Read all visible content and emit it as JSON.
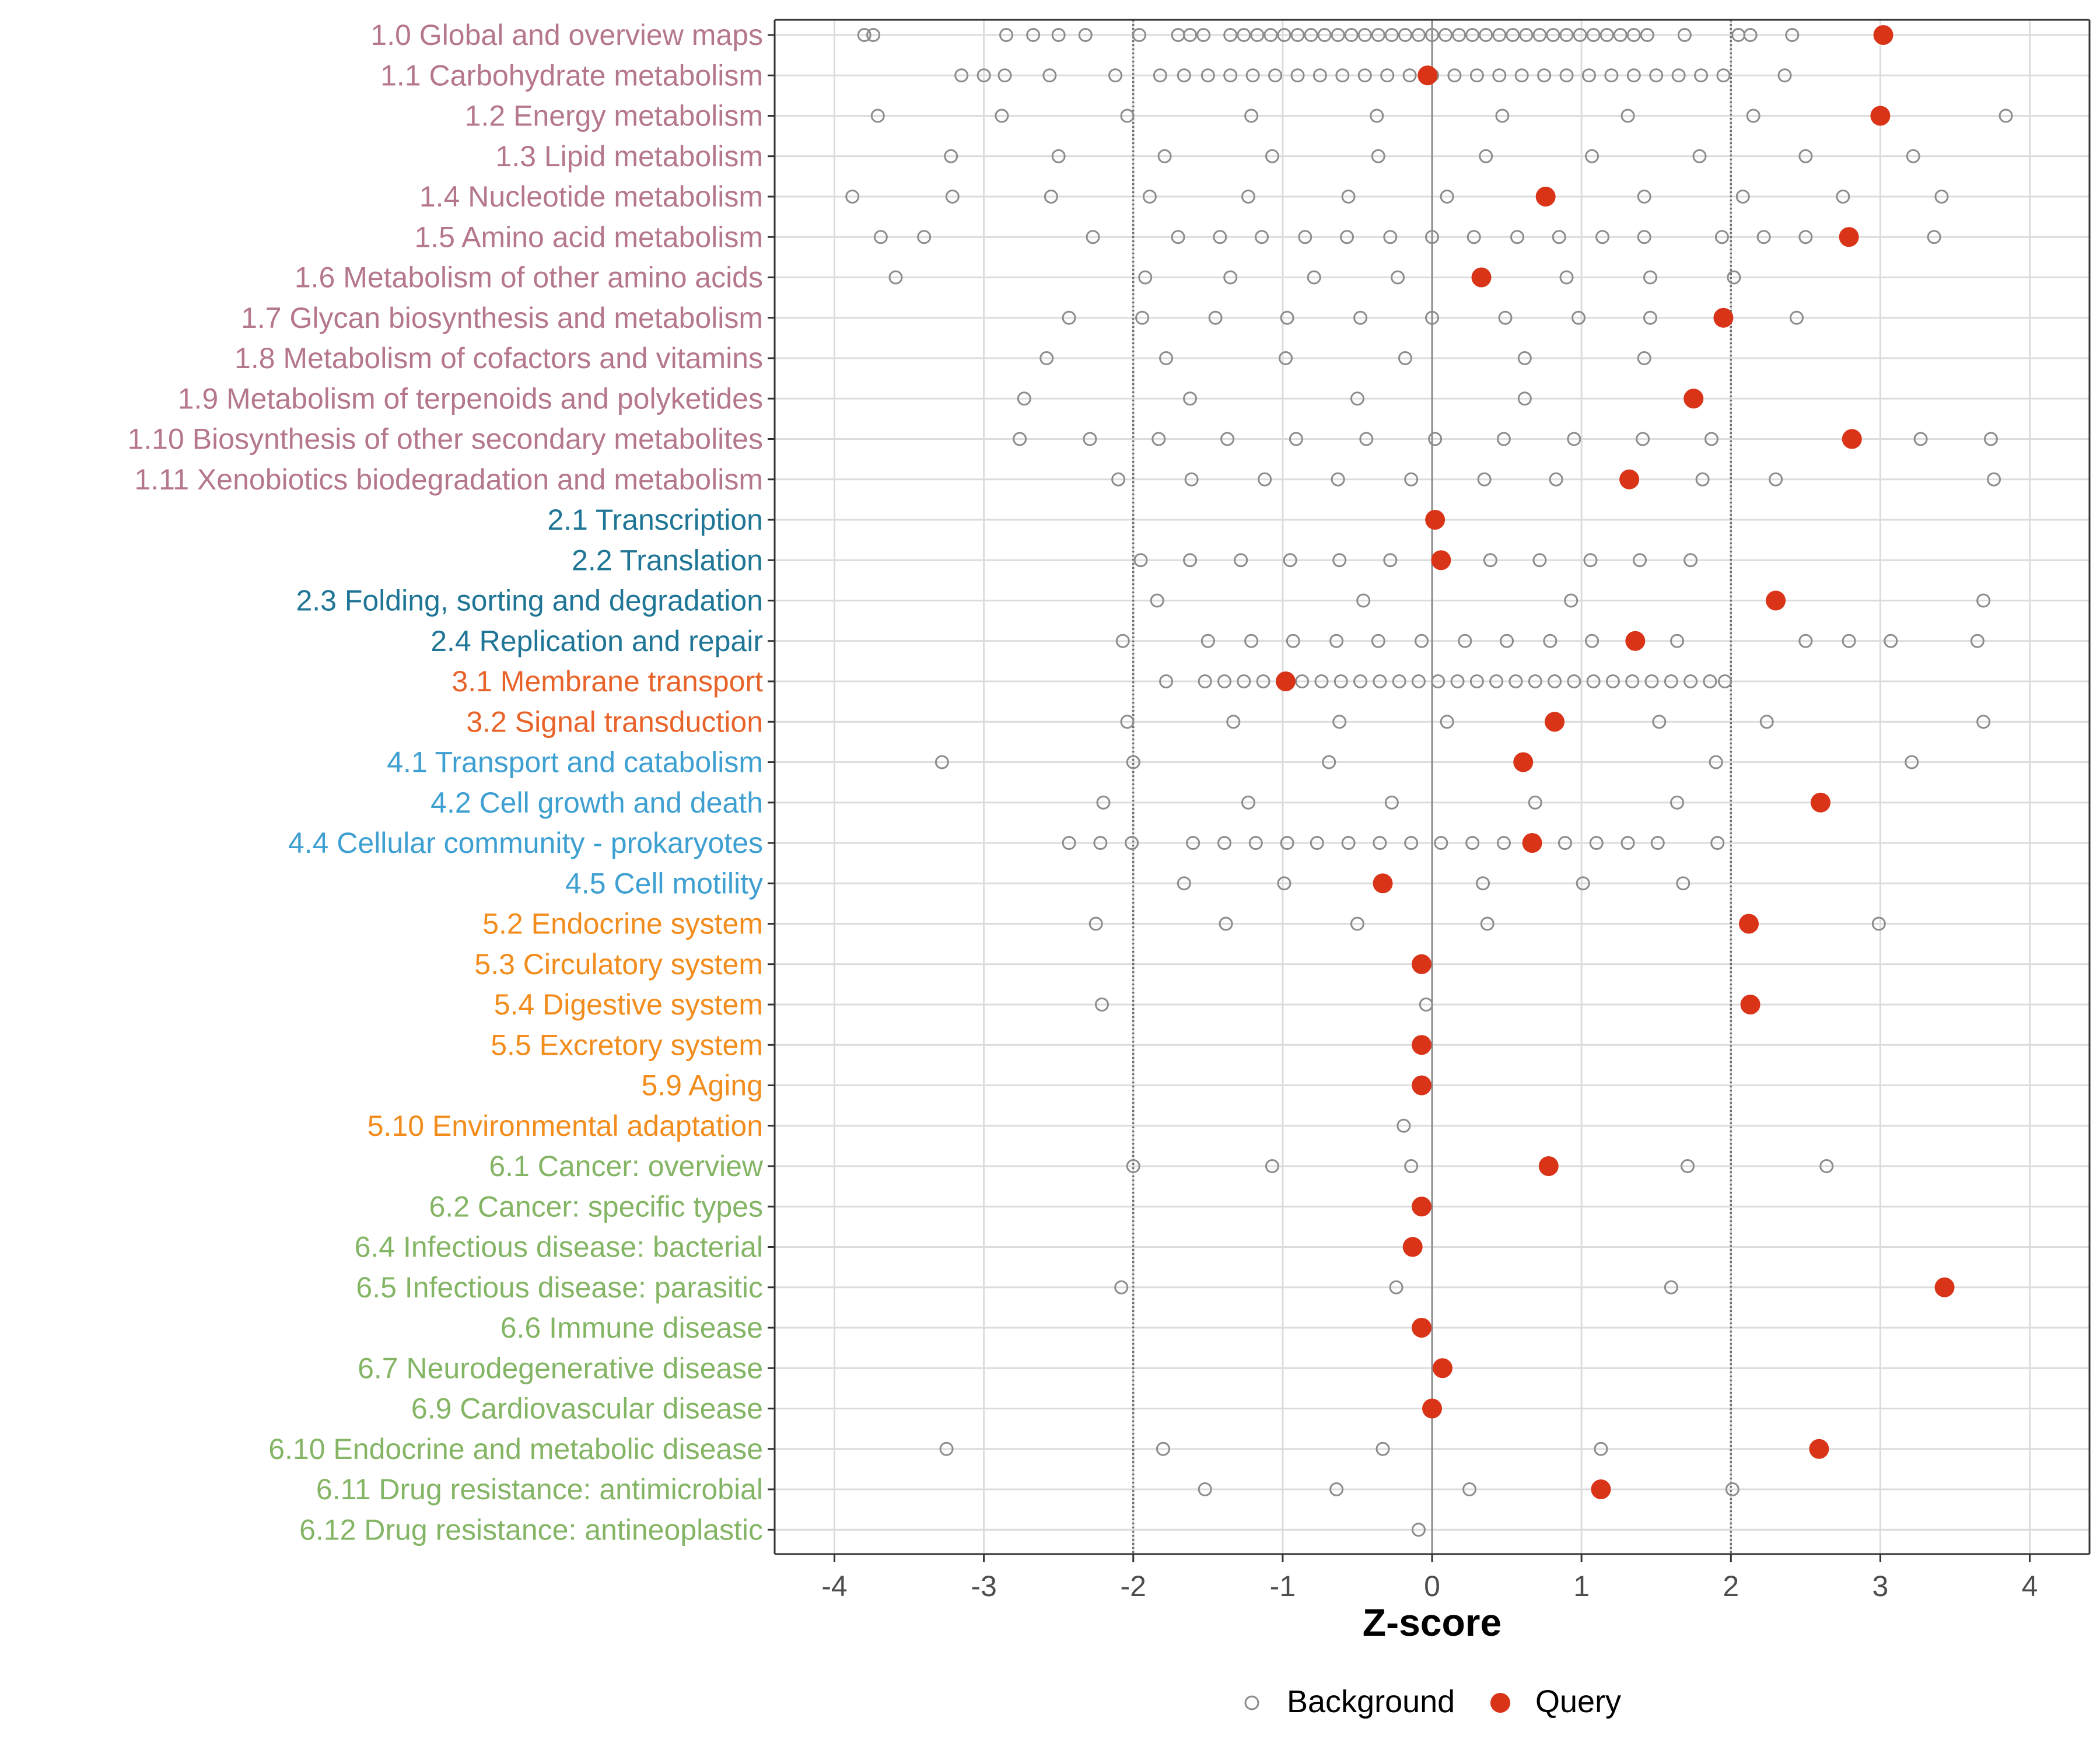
{
  "chart_data": {
    "type": "scatter",
    "title": "",
    "xlabel": "Z-score",
    "ylabel": "",
    "xlim": [
      -4.4,
      4.4
    ],
    "xticks": [
      -4,
      -3,
      -2,
      -1,
      0,
      1,
      2,
      3,
      4
    ],
    "xtick_labels": [
      "-4",
      "-3",
      "-2",
      "-1",
      "0",
      "1",
      "2",
      "3",
      "4"
    ],
    "reference_lines": [
      -2,
      0,
      2
    ],
    "grid": true,
    "legend_position": "bottom",
    "legend": [
      {
        "name": "Background",
        "marker": "open-circle",
        "color": "#8c8c8c"
      },
      {
        "name": "Query",
        "marker": "filled-circle",
        "color": "#d93318"
      }
    ],
    "group_colors": {
      "metabolism": "#b5778b",
      "genetic": "#1f7595",
      "environmental": "#e8632a",
      "cellular": "#3e9fd1",
      "organismal": "#f28c1c",
      "disease": "#84b565"
    },
    "categories": [
      {
        "label": "1.0 Global and overview maps",
        "group": "metabolism",
        "query": 3.02,
        "background": [
          -3.8,
          -3.74,
          -2.85,
          -2.67,
          -2.5,
          -2.32,
          -1.96,
          -1.7,
          -1.62,
          -1.53,
          -1.35,
          -1.26,
          -1.17,
          -1.08,
          -0.99,
          -0.9,
          -0.81,
          -0.72,
          -0.63,
          -0.54,
          -0.45,
          -0.36,
          -0.27,
          -0.18,
          -0.09,
          0.0,
          0.09,
          0.18,
          0.27,
          0.36,
          0.45,
          0.54,
          0.63,
          0.72,
          0.81,
          0.9,
          0.99,
          1.08,
          1.17,
          1.26,
          1.35,
          1.44,
          1.69,
          2.05,
          2.13,
          2.41
        ]
      },
      {
        "label": "1.1 Carbohydrate metabolism",
        "group": "metabolism",
        "query": -0.03,
        "background": [
          -3.15,
          -3.0,
          -2.86,
          -2.56,
          -2.12,
          -1.82,
          -1.66,
          -1.5,
          -1.35,
          -1.2,
          -1.05,
          -0.9,
          -0.75,
          -0.6,
          -0.45,
          -0.3,
          -0.15,
          0.0,
          0.15,
          0.3,
          0.45,
          0.6,
          0.75,
          0.9,
          1.05,
          1.2,
          1.35,
          1.5,
          1.65,
          1.8,
          1.95,
          2.36
        ]
      },
      {
        "label": "1.2 Energy metabolism",
        "group": "metabolism",
        "query": 3.0,
        "background": [
          -3.71,
          -2.88,
          -2.04,
          -1.21,
          -0.37,
          0.47,
          1.31,
          2.15,
          3.84
        ]
      },
      {
        "label": "1.3 Lipid metabolism",
        "group": "metabolism",
        "query": null,
        "background": [
          -3.22,
          -2.5,
          -1.79,
          -1.07,
          -0.36,
          0.36,
          1.07,
          1.79,
          2.5,
          3.22
        ]
      },
      {
        "label": "1.4 Nucleotide metabolism",
        "group": "metabolism",
        "query": 0.76,
        "background": [
          -3.88,
          -3.21,
          -2.55,
          -1.89,
          -1.23,
          -0.56,
          0.1,
          1.42,
          2.08,
          2.75,
          3.41
        ]
      },
      {
        "label": "1.5 Amino acid metabolism",
        "group": "metabolism",
        "query": 2.79,
        "background": [
          -3.69,
          -3.4,
          -2.27,
          -1.7,
          -1.42,
          -1.14,
          -0.85,
          -0.57,
          -0.28,
          0.0,
          0.28,
          0.57,
          0.85,
          1.14,
          1.42,
          1.94,
          2.22,
          2.5,
          3.36
        ]
      },
      {
        "label": "1.6 Metabolism of other amino acids",
        "group": "metabolism",
        "query": 0.33,
        "background": [
          -3.59,
          -1.92,
          -1.35,
          -0.79,
          -0.23,
          0.9,
          1.46,
          2.02
        ]
      },
      {
        "label": "1.7 Glycan biosynthesis and metabolism",
        "group": "metabolism",
        "query": 1.95,
        "background": [
          -2.43,
          -1.94,
          -1.45,
          -0.97,
          -0.48,
          0.0,
          0.49,
          0.98,
          1.46,
          2.44
        ]
      },
      {
        "label": "1.8 Metabolism of cofactors and vitamins",
        "group": "metabolism",
        "query": null,
        "background": [
          -2.58,
          -1.78,
          -0.98,
          -0.18,
          0.62,
          1.42
        ]
      },
      {
        "label": "1.9 Metabolism of terpenoids and polyketides",
        "group": "metabolism",
        "query": 1.75,
        "background": [
          -2.73,
          -1.62,
          -0.5,
          0.62
        ]
      },
      {
        "label": "1.10 Biosynthesis of other secondary metabolites",
        "group": "metabolism",
        "query": 2.81,
        "background": [
          -2.76,
          -2.29,
          -1.83,
          -1.37,
          -0.91,
          -0.44,
          0.02,
          0.48,
          0.95,
          1.41,
          1.87,
          3.27,
          3.74
        ]
      },
      {
        "label": "1.11 Xenobiotics biodegradation and metabolism",
        "group": "metabolism",
        "query": 1.32,
        "background": [
          -2.1,
          -1.61,
          -1.12,
          -0.63,
          -0.14,
          0.35,
          0.83,
          1.81,
          2.3,
          3.76
        ]
      },
      {
        "label": "2.1 Transcription",
        "group": "genetic",
        "query": 0.02,
        "background": []
      },
      {
        "label": "2.2 Translation",
        "group": "genetic",
        "query": 0.06,
        "background": [
          -1.95,
          -1.62,
          -1.28,
          -0.95,
          -0.62,
          -0.28,
          0.39,
          0.72,
          1.06,
          1.39,
          1.73
        ]
      },
      {
        "label": "2.3 Folding, sorting and degradation",
        "group": "genetic",
        "query": 2.3,
        "background": [
          -1.84,
          -0.46,
          0.93,
          3.69
        ]
      },
      {
        "label": "2.4 Replication and repair",
        "group": "genetic",
        "query": 1.36,
        "background": [
          -2.07,
          -1.5,
          -1.21,
          -0.93,
          -0.64,
          -0.36,
          -0.07,
          0.22,
          0.5,
          0.79,
          1.07,
          1.64,
          2.5,
          2.79,
          3.07,
          3.65
        ]
      },
      {
        "label": "3.1 Membrane transport",
        "group": "environmental",
        "query": -0.98,
        "background": [
          -1.78,
          -1.52,
          -1.39,
          -1.26,
          -1.13,
          -1.0,
          -0.87,
          -0.74,
          -0.61,
          -0.48,
          -0.35,
          -0.22,
          -0.09,
          0.04,
          0.17,
          0.3,
          0.43,
          0.56,
          0.69,
          0.82,
          0.95,
          1.08,
          1.21,
          1.34,
          1.47,
          1.6,
          1.73,
          1.86,
          1.96
        ]
      },
      {
        "label": "3.2 Signal transduction",
        "group": "environmental",
        "query": 0.82,
        "background": [
          -2.04,
          -1.33,
          -0.62,
          0.1,
          1.52,
          2.24,
          3.69
        ]
      },
      {
        "label": "4.1 Transport and catabolism",
        "group": "cellular",
        "query": 0.61,
        "background": [
          -3.28,
          -2.0,
          -0.69,
          1.9,
          3.21
        ]
      },
      {
        "label": "4.2 Cell growth and death",
        "group": "cellular",
        "query": 2.6,
        "background": [
          -2.2,
          -1.23,
          -0.27,
          0.69,
          1.64
        ]
      },
      {
        "label": "4.4 Cellular community - prokaryotes",
        "group": "cellular",
        "query": 0.67,
        "background": [
          -2.43,
          -2.22,
          -2.01,
          -1.6,
          -1.39,
          -1.18,
          -0.97,
          -0.77,
          -0.56,
          -0.35,
          -0.14,
          0.06,
          0.27,
          0.48,
          0.89,
          1.1,
          1.31,
          1.51,
          1.91
        ]
      },
      {
        "label": "4.5 Cell motility",
        "group": "cellular",
        "query": -0.33,
        "background": [
          -1.66,
          -0.99,
          0.34,
          1.01,
          1.68
        ]
      },
      {
        "label": "5.2 Endocrine system",
        "group": "organismal",
        "query": 2.12,
        "background": [
          -2.25,
          -1.38,
          -0.5,
          0.37,
          2.99
        ]
      },
      {
        "label": "5.3 Circulatory system",
        "group": "organismal",
        "query": -0.07,
        "background": []
      },
      {
        "label": "5.4 Digestive system",
        "group": "organismal",
        "query": 2.13,
        "background": [
          -2.21,
          -0.04
        ]
      },
      {
        "label": "5.5 Excretory system",
        "group": "organismal",
        "query": -0.07,
        "background": []
      },
      {
        "label": "5.9 Aging",
        "group": "organismal",
        "query": -0.07,
        "background": []
      },
      {
        "label": "5.10 Environmental adaptation",
        "group": "organismal",
        "query": null,
        "background": [
          -0.19
        ]
      },
      {
        "label": "6.1 Cancer: overview",
        "group": "disease",
        "query": 0.78,
        "background": [
          -2.0,
          -1.07,
          -0.14,
          1.71,
          2.64
        ]
      },
      {
        "label": "6.2 Cancer: specific types",
        "group": "disease",
        "query": -0.07,
        "background": []
      },
      {
        "label": "6.4 Infectious disease: bacterial",
        "group": "disease",
        "query": -0.13,
        "background": []
      },
      {
        "label": "6.5 Infectious disease: parasitic",
        "group": "disease",
        "query": 3.43,
        "background": [
          -2.08,
          -0.24,
          1.6
        ]
      },
      {
        "label": "6.6 Immune disease",
        "group": "disease",
        "query": -0.07,
        "background": []
      },
      {
        "label": "6.7 Neurodegenerative disease",
        "group": "disease",
        "query": 0.07,
        "background": []
      },
      {
        "label": "6.9 Cardiovascular disease",
        "group": "disease",
        "query": 0.0,
        "background": []
      },
      {
        "label": "6.10 Endocrine and metabolic disease",
        "group": "disease",
        "query": 2.59,
        "background": [
          -3.25,
          -1.8,
          -0.33,
          1.13
        ]
      },
      {
        "label": "6.11 Drug resistance: antimicrobial",
        "group": "disease",
        "query": 1.13,
        "background": [
          -1.52,
          -0.64,
          0.25,
          2.01
        ]
      },
      {
        "label": "6.12 Drug resistance: antineoplastic",
        "group": "disease",
        "query": null,
        "background": [
          -0.09
        ]
      }
    ]
  }
}
